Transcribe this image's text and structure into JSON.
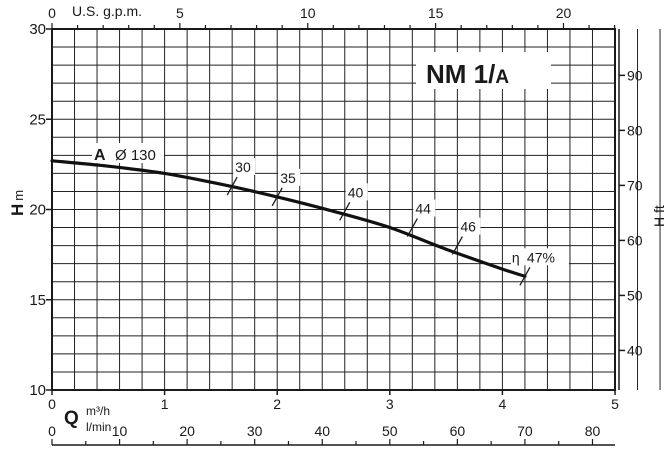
{
  "chart_data": {
    "type": "line",
    "title": "NM 1/A",
    "title_main": "NM 1/",
    "title_sub": "A",
    "curve_name": "A",
    "impeller": "Ø 130",
    "eta_symbol": "η",
    "y_label": "H",
    "y_unit": "m",
    "y2_label": "H ft",
    "x_label": "Q",
    "x_unit": "m³/h",
    "x2_unit": "l/min",
    "gpm_label": "U.S. g.p.m.",
    "xlim": [
      0,
      5
    ],
    "ylim": [
      10,
      30
    ],
    "x_ticks": [
      0,
      1,
      2,
      3,
      4,
      5
    ],
    "y_ticks": [
      10,
      15,
      20,
      25,
      30
    ],
    "ft_ticks": [
      40,
      50,
      60,
      70,
      80,
      90
    ],
    "lmin_ticks": [
      0,
      10,
      20,
      30,
      40,
      50,
      60,
      70,
      80
    ],
    "gpm_ticks": [
      0,
      5,
      10,
      15,
      20
    ],
    "grid": true,
    "series": [
      {
        "name": "A",
        "x": [
          0,
          0.5,
          1.0,
          1.5,
          2.0,
          2.5,
          3.0,
          3.5,
          4.0,
          4.2
        ],
        "y": [
          22.7,
          22.4,
          22.0,
          21.4,
          20.7,
          19.9,
          19.0,
          17.8,
          16.7,
          16.3
        ]
      }
    ],
    "efficiency_marks": [
      {
        "label": "30",
        "x": 1.6,
        "y": 21.3
      },
      {
        "label": "35",
        "x": 2.0,
        "y": 20.7
      },
      {
        "label": "40",
        "x": 2.6,
        "y": 19.9
      },
      {
        "label": "44",
        "x": 3.2,
        "y": 19.0
      },
      {
        "label": "46",
        "x": 3.6,
        "y": 18.0
      },
      {
        "label": "47%",
        "x": 4.2,
        "y": 16.3
      }
    ]
  }
}
